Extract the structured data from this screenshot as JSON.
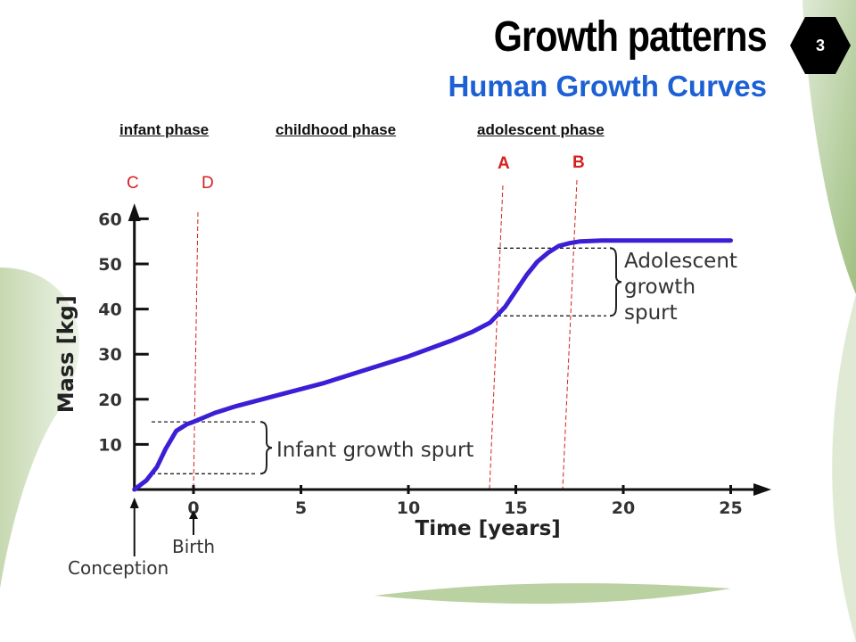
{
  "slide": {
    "title": "Growth patterns",
    "subtitle": "Human Growth Curves",
    "page_number": "3"
  },
  "phases": [
    {
      "label": "infant phase"
    },
    {
      "label": "childhood phase"
    },
    {
      "label": "adolescent phase"
    }
  ],
  "markers": [
    {
      "label": "C"
    },
    {
      "label": "D"
    },
    {
      "label": "A"
    },
    {
      "label": "B"
    }
  ],
  "colors": {
    "curve": "#3a1fd6",
    "marker": "#d62020",
    "subtitle": "#1c60d4",
    "decor": "#7fa83a"
  },
  "chart_data": {
    "type": "line",
    "title": "",
    "xlabel": "Time [years]",
    "ylabel": "Mass [kg]",
    "xlim": [
      -2.75,
      26
    ],
    "ylim": [
      0,
      62
    ],
    "x_ticks": [
      0,
      5,
      10,
      15,
      20,
      25
    ],
    "y_ticks": [
      10,
      20,
      30,
      40,
      50,
      60
    ],
    "x_tick_labels": [
      "0",
      "5",
      "10",
      "15",
      "20",
      "25"
    ],
    "y_tick_labels": [
      "10",
      "20",
      "30",
      "40",
      "50",
      "60"
    ],
    "grid": false,
    "series": [
      {
        "name": "",
        "x": [
          -2.75,
          -2.2,
          -1.7,
          -1.3,
          -0.8,
          -0.3,
          0,
          1,
          2,
          4,
          6,
          8,
          10,
          12,
          13,
          13.8,
          14.5,
          15,
          15.5,
          16,
          16.5,
          17,
          17.5,
          18,
          19,
          20,
          22,
          25
        ],
        "y": [
          0,
          2,
          5,
          9,
          13,
          14.5,
          15,
          17,
          18.5,
          21,
          23.5,
          26.5,
          29.5,
          33,
          35,
          37,
          40.5,
          44,
          47.5,
          50.5,
          52.5,
          54,
          54.6,
          55,
          55.2,
          55.2,
          55.2,
          55.2
        ]
      }
    ],
    "annotations": [
      {
        "label": "Infant growth spurt",
        "y_from": 3.5,
        "y_to": 15
      },
      {
        "label_lines": [
          "Adolescent",
          "growth",
          "spurt"
        ],
        "y_from": 38.5,
        "y_to": 53.5
      }
    ],
    "axis_markers": [
      {
        "label": "Birth",
        "x": 0
      },
      {
        "label": "Conception",
        "x": -2.75
      }
    ],
    "vertical_lines": [
      {
        "label": "D",
        "x": 0
      },
      {
        "label": "A",
        "x": 14
      },
      {
        "label": "B",
        "x": 17.5
      }
    ]
  }
}
